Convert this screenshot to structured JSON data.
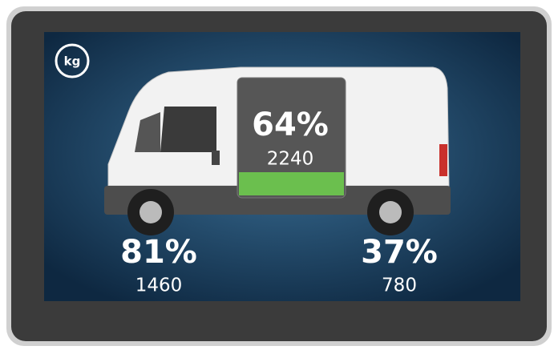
{
  "unit": "kg",
  "total": {
    "percent": "64%",
    "weight": "2240"
  },
  "front_axle": {
    "percent": "81%",
    "weight": "1460"
  },
  "rear_axle": {
    "percent": "37%",
    "weight": "780"
  }
}
